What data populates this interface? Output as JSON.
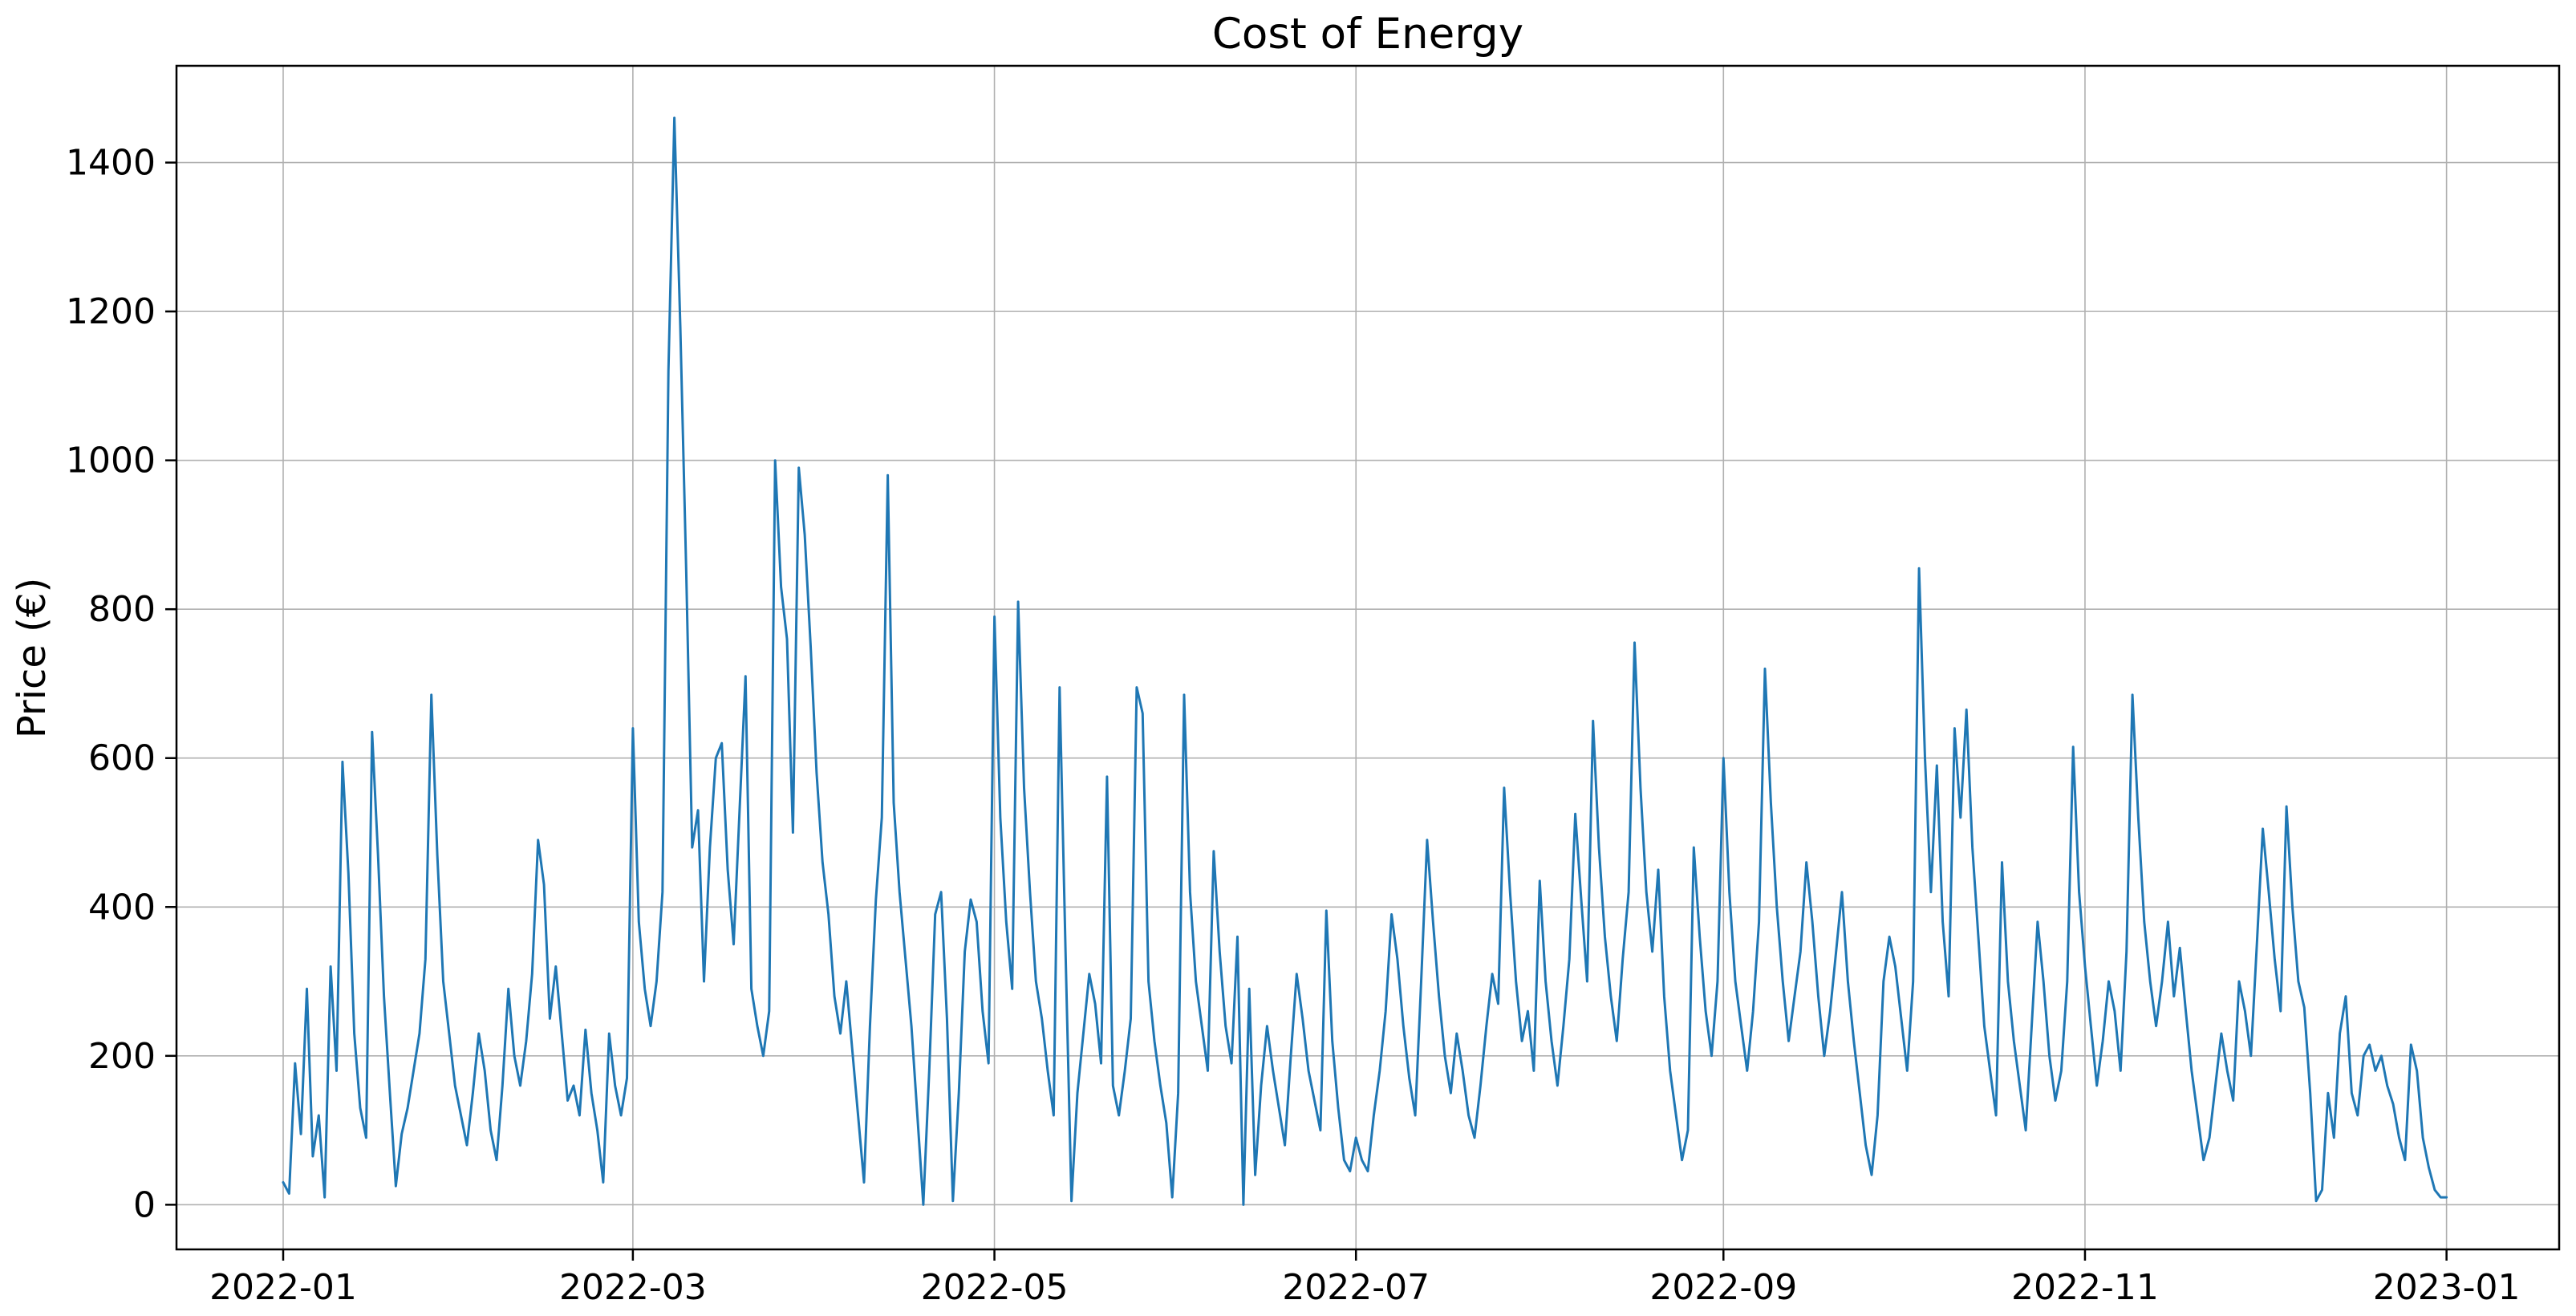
{
  "chart_data": {
    "type": "line",
    "title": "Cost of Energy",
    "ylabel": "Price (€)",
    "xlabel": "",
    "legend": "none",
    "grid": true,
    "grid_color": "#b0b0b0",
    "line_color": "#1f77b4",
    "background_color": "#ffffff",
    "x_unit": "day-index from 2022-01-01, one value per day",
    "x_start": "2022-01-01",
    "x_end": "2023-01-01",
    "xlim_days": [
      -18,
      384
    ],
    "ylim": [
      -60,
      1530
    ],
    "y_ticks": [
      0,
      200,
      400,
      600,
      800,
      1000,
      1200,
      1400
    ],
    "x_ticks": [
      {
        "day": 0,
        "label": "2022-01"
      },
      {
        "day": 59,
        "label": "2022-03"
      },
      {
        "day": 120,
        "label": "2022-05"
      },
      {
        "day": 181,
        "label": "2022-07"
      },
      {
        "day": 243,
        "label": "2022-09"
      },
      {
        "day": 304,
        "label": "2022-11"
      },
      {
        "day": 365,
        "label": "2023-01"
      }
    ],
    "values": [
      30,
      15,
      190,
      95,
      290,
      65,
      120,
      10,
      320,
      180,
      595,
      445,
      230,
      130,
      90,
      635,
      470,
      280,
      150,
      25,
      95,
      130,
      180,
      230,
      330,
      685,
      470,
      300,
      230,
      160,
      120,
      80,
      150,
      230,
      180,
      100,
      60,
      160,
      290,
      200,
      160,
      220,
      310,
      490,
      430,
      250,
      320,
      230,
      140,
      160,
      120,
      235,
      150,
      100,
      30,
      230,
      160,
      120,
      170,
      640,
      380,
      290,
      240,
      300,
      420,
      1120,
      1460,
      1180,
      850,
      480,
      530,
      300,
      480,
      600,
      620,
      450,
      350,
      530,
      710,
      290,
      240,
      200,
      260,
      1000,
      830,
      760,
      500,
      990,
      900,
      750,
      580,
      460,
      390,
      280,
      230,
      300,
      210,
      120,
      30,
      240,
      410,
      520,
      980,
      540,
      420,
      330,
      240,
      120,
      0,
      180,
      390,
      420,
      250,
      5,
      150,
      340,
      410,
      380,
      260,
      190,
      790,
      520,
      380,
      290,
      810,
      560,
      420,
      300,
      250,
      180,
      120,
      695,
      340,
      5,
      150,
      230,
      310,
      270,
      190,
      575,
      160,
      120,
      180,
      250,
      695,
      660,
      300,
      220,
      160,
      110,
      10,
      150,
      685,
      420,
      300,
      240,
      180,
      475,
      340,
      240,
      190,
      360,
      0,
      290,
      40,
      160,
      240,
      180,
      130,
      80,
      200,
      310,
      250,
      180,
      140,
      100,
      395,
      220,
      130,
      60,
      45,
      90,
      60,
      45,
      120,
      180,
      260,
      390,
      330,
      240,
      170,
      120,
      300,
      490,
      380,
      280,
      200,
      150,
      230,
      180,
      120,
      90,
      160,
      240,
      310,
      270,
      560,
      420,
      300,
      220,
      260,
      180,
      435,
      300,
      220,
      160,
      240,
      330,
      525,
      410,
      300,
      650,
      480,
      360,
      280,
      220,
      330,
      420,
      755,
      560,
      420,
      340,
      450,
      280,
      180,
      120,
      60,
      100,
      480,
      360,
      260,
      200,
      300,
      600,
      420,
      300,
      240,
      180,
      260,
      380,
      720,
      540,
      400,
      300,
      220,
      280,
      340,
      460,
      380,
      280,
      200,
      260,
      340,
      420,
      300,
      220,
      150,
      80,
      40,
      120,
      300,
      360,
      320,
      250,
      180,
      300,
      855,
      600,
      420,
      590,
      380,
      280,
      640,
      520,
      665,
      480,
      360,
      240,
      180,
      120,
      460,
      300,
      220,
      160,
      100,
      240,
      380,
      300,
      200,
      140,
      180,
      300,
      615,
      420,
      320,
      240,
      160,
      220,
      300,
      260,
      180,
      340,
      685,
      520,
      380,
      300,
      240,
      300,
      380,
      280,
      345,
      260,
      180,
      120,
      60,
      90,
      160,
      230,
      180,
      140,
      300,
      260,
      200,
      350,
      505,
      420,
      330,
      260,
      535,
      400,
      300,
      265,
      150,
      5,
      20,
      150,
      90,
      230,
      280,
      150,
      120,
      200,
      215,
      180,
      200,
      160,
      135,
      90,
      60,
      215,
      180,
      90,
      50,
      20,
      10,
      10
    ]
  }
}
